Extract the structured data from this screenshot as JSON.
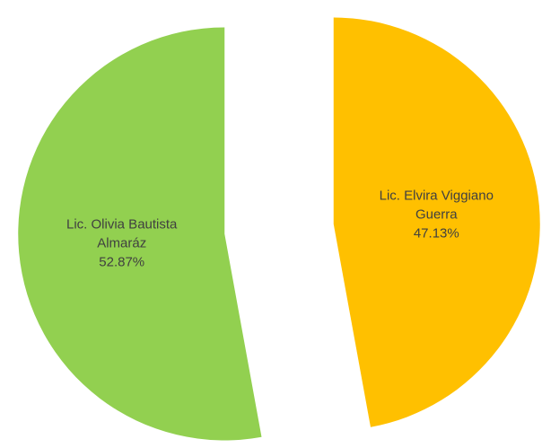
{
  "chart_data": {
    "type": "pie",
    "categories": [
      "Lic. Elvira Viggiano Guerra",
      "Lic. Olivia Bautista Almaráz"
    ],
    "values": [
      47.13,
      52.87
    ],
    "value_labels": [
      "47.13%",
      "52.87%"
    ],
    "colors": [
      "#FFC000",
      "#92D050"
    ]
  }
}
